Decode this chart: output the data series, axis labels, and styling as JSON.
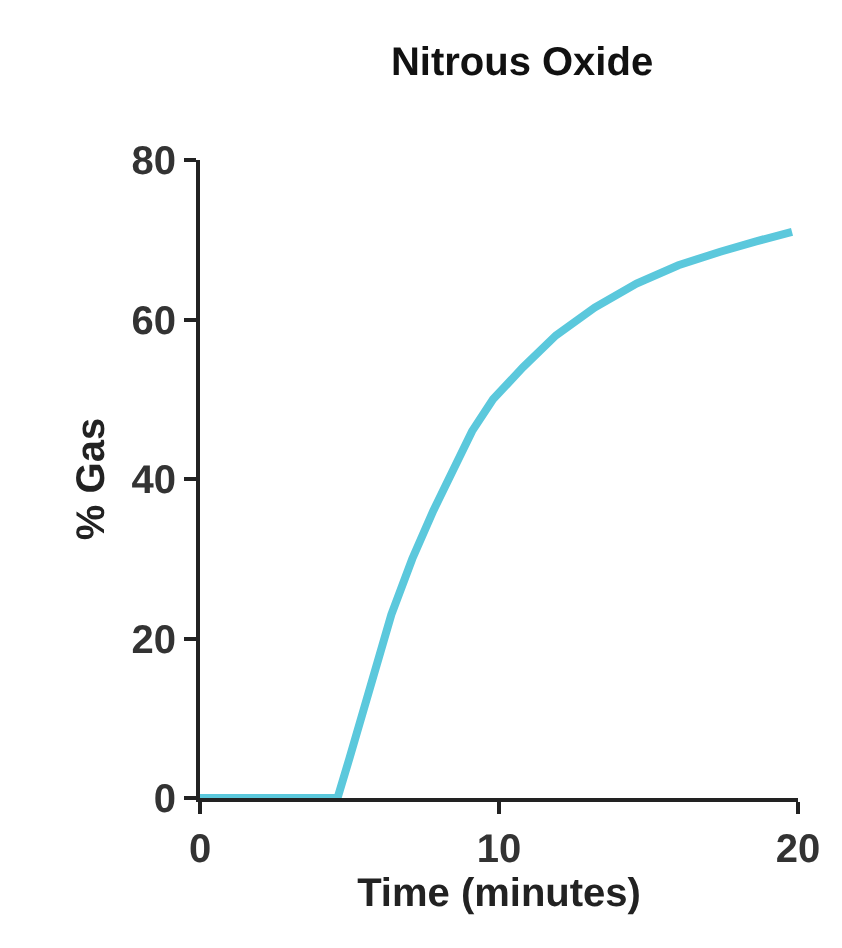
{
  "chart_data": {
    "type": "line",
    "title": "Nitrous Oxide",
    "xlabel": "Time (minutes)",
    "ylabel": "% Gas",
    "x": [
      0,
      1,
      2,
      3,
      4,
      4.6,
      5.0,
      5.7,
      6.4,
      7.1,
      7.8,
      8.45,
      9.1,
      9.8,
      10.8,
      11.9,
      13.2,
      14.6,
      16.0,
      17.4,
      18.6,
      19.8
    ],
    "series": [
      {
        "color": "#5bc8dc",
        "values": [
          0,
          0,
          0,
          0,
          0,
          0,
          5,
          14,
          23,
          30,
          36,
          41,
          46,
          50,
          54,
          58,
          61.5,
          64.5,
          66.8,
          68.5,
          69.8,
          71
        ]
      }
    ],
    "xlim": [
      0,
      20
    ],
    "xticks": [
      0,
      10,
      20
    ],
    "ylim": [
      0,
      80
    ],
    "yticks": [
      0,
      20,
      40,
      60,
      80
    ],
    "legend": false,
    "marker": "none",
    "line_style": "solid"
  }
}
